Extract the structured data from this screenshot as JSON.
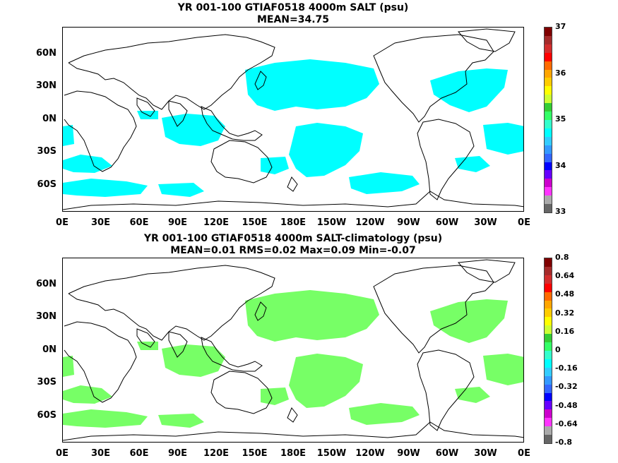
{
  "panels": [
    {
      "title": "YR 001-100 GTIAF0518 4000m SALT (psu)",
      "subtitle": "MEAN=34.75",
      "fill_color": "#00ffff",
      "colorbar": {
        "colors": [
          "#7f0000",
          "#a52a2a",
          "#d22d2d",
          "#ff0000",
          "#ff6a00",
          "#ffa500",
          "#ffcc00",
          "#ffff00",
          "#ccff33",
          "#33cc33",
          "#33ff66",
          "#33ffcc",
          "#00ffff",
          "#33ccff",
          "#3399ff",
          "#3366ff",
          "#0000ff",
          "#6600ff",
          "#cc00cc",
          "#ff33ff",
          "#aaaaaa",
          "#666666"
        ],
        "tick_labels": [
          "37",
          "36",
          "35",
          "34",
          "33"
        ]
      }
    },
    {
      "title": "YR 001-100 GTIAF0518 4000m SALT-climatology (psu)",
      "subtitle": "MEAN=0.01   RMS=0.02   Max=0.09   Min=-0.07",
      "fill_color": "#77ff66",
      "colorbar": {
        "colors": [
          "#7f0000",
          "#a52a2a",
          "#d22d2d",
          "#ff0000",
          "#ff6a00",
          "#ffa500",
          "#ffcc00",
          "#ffff00",
          "#ccff33",
          "#33cc33",
          "#33ff66",
          "#33ffcc",
          "#00ffff",
          "#33ccff",
          "#3399ff",
          "#3366ff",
          "#0000ff",
          "#6600ff",
          "#cc00cc",
          "#ff33ff",
          "#aaaaaa",
          "#666666"
        ],
        "tick_labels": [
          "0.8",
          "0.64",
          "0.48",
          "0.32",
          "0.16",
          "0",
          "-0.16",
          "-0.32",
          "-0.48",
          "-0.64",
          "-0.8"
        ]
      }
    }
  ],
  "lat_labels": [
    "60N",
    "30N",
    "0N",
    "30S",
    "60S"
  ],
  "lon_labels": [
    "0E",
    "30E",
    "60E",
    "90E",
    "120E",
    "150E",
    "180E",
    "150W",
    "120W",
    "90W",
    "60W",
    "30W",
    "0E"
  ]
}
